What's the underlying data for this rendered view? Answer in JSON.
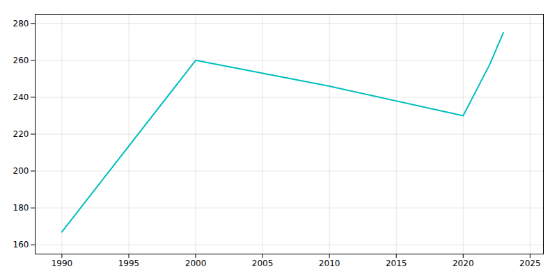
{
  "chart_data": {
    "type": "line",
    "x": [
      1990,
      2000,
      2010,
      2020,
      2022,
      2023
    ],
    "values": [
      167,
      260,
      246,
      230,
      258,
      275
    ],
    "color": "#00BEBE",
    "xlim": [
      1988,
      2026
    ],
    "ylim": [
      155,
      285
    ],
    "xticks": [
      1990,
      1995,
      2000,
      2005,
      2010,
      2015,
      2020,
      2025
    ],
    "yticks": [
      160,
      180,
      200,
      220,
      240,
      260,
      280
    ],
    "grid": true
  }
}
